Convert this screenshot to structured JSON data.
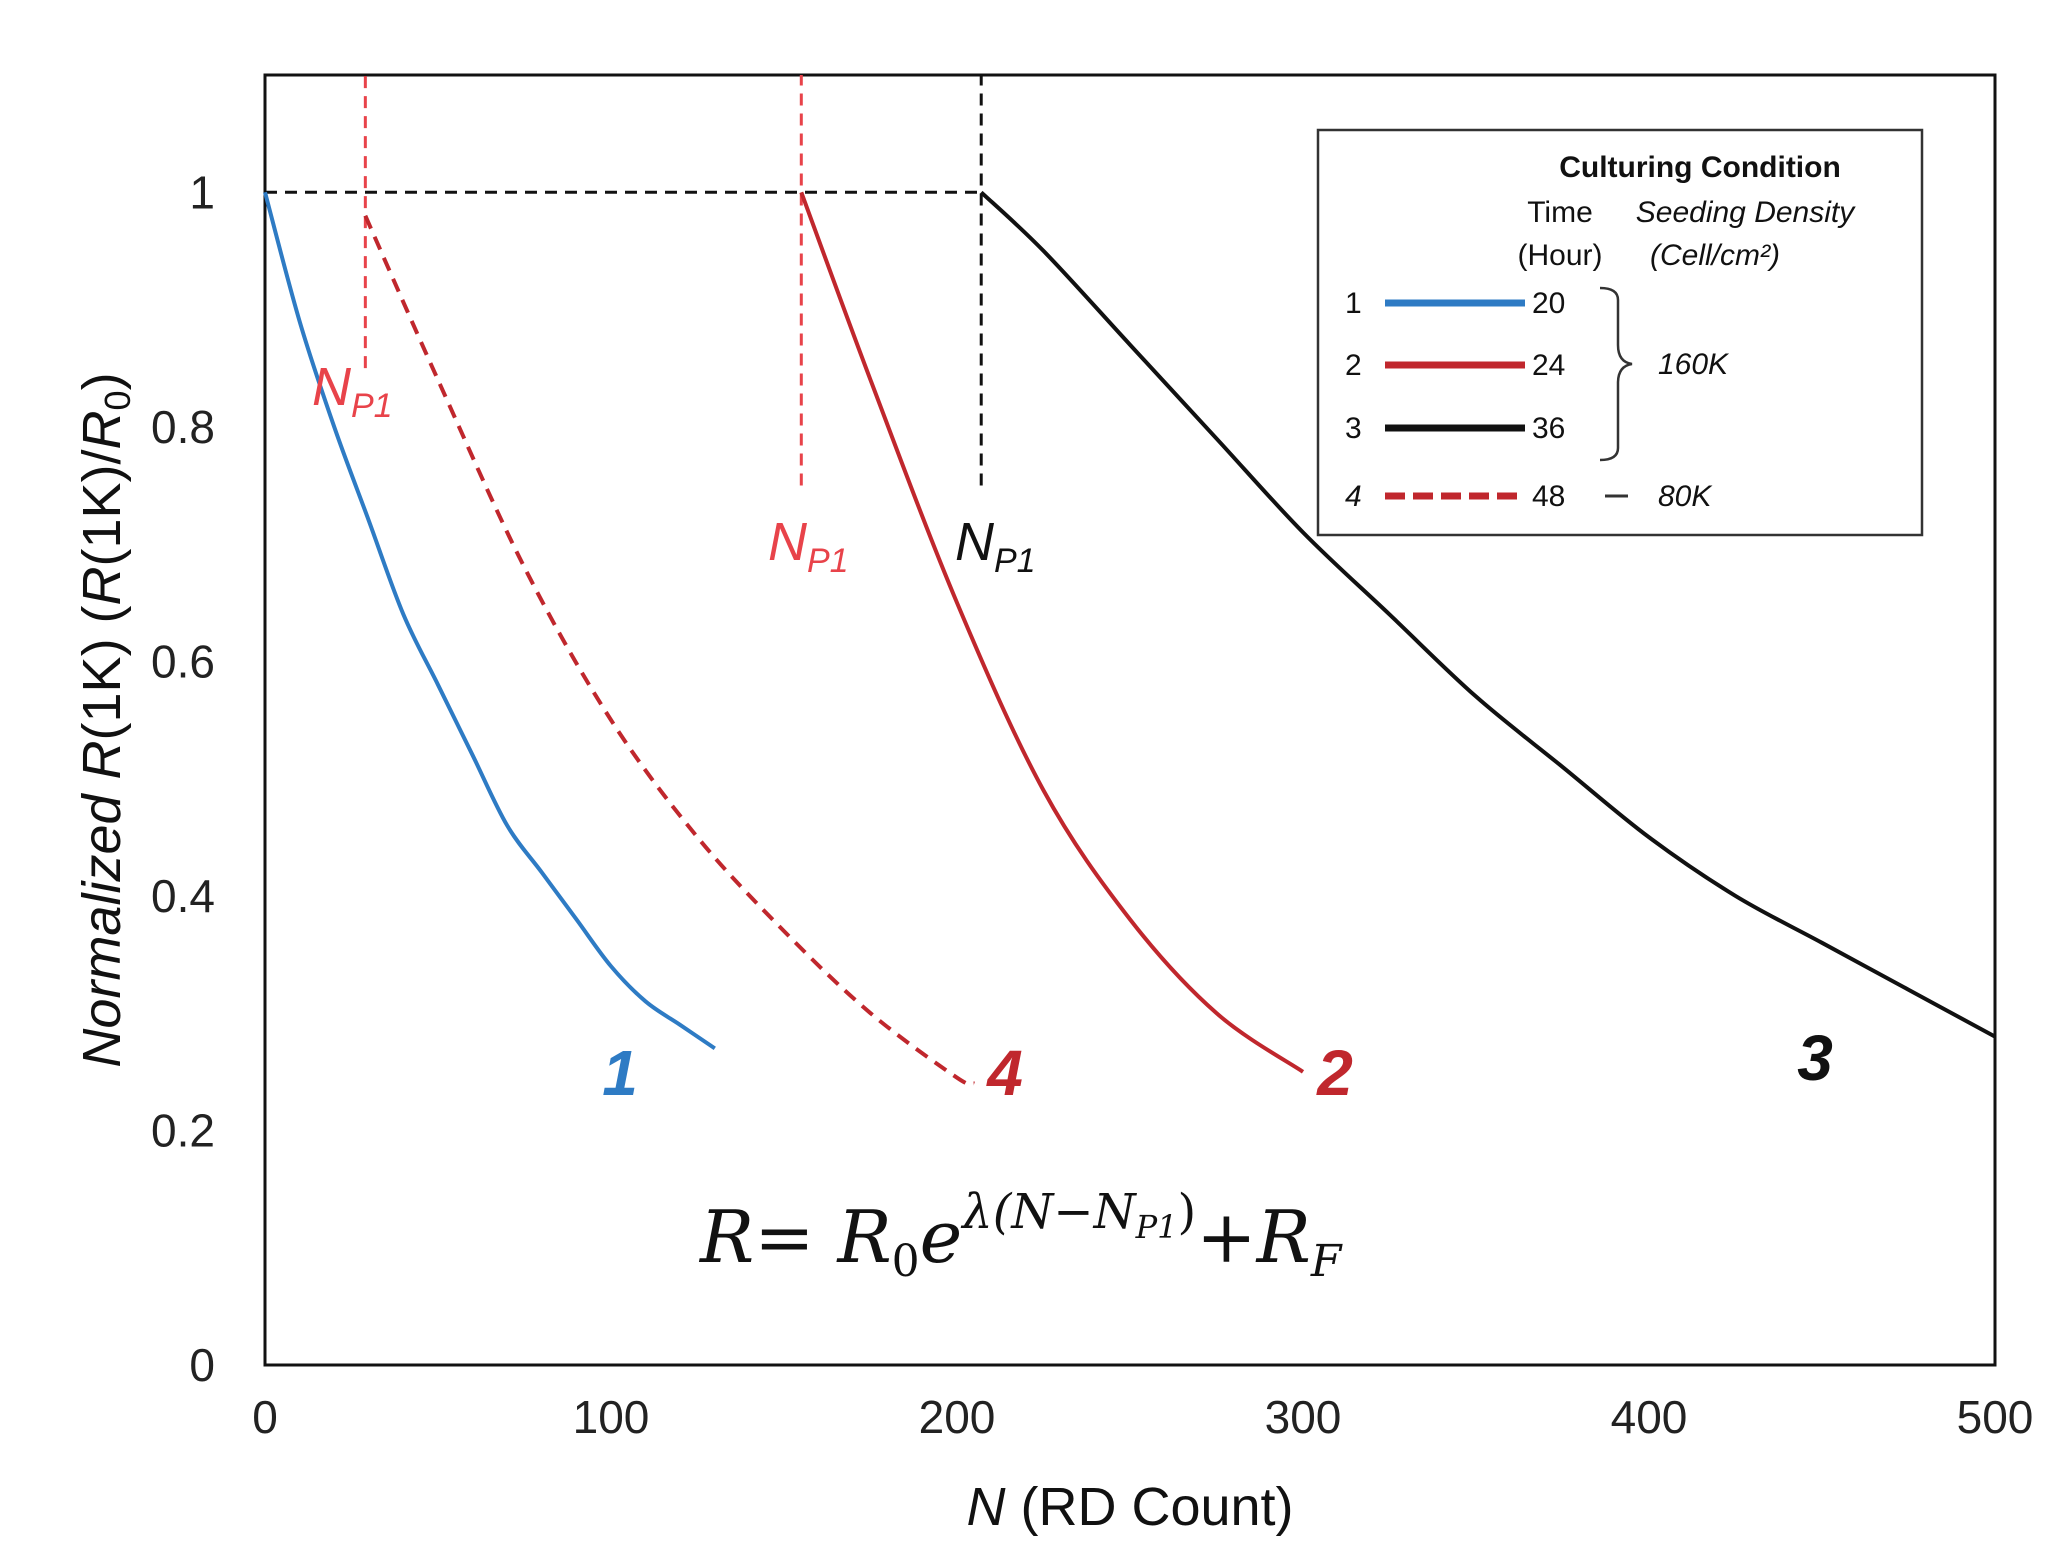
{
  "chart_data": {
    "type": "line",
    "title": "",
    "xlabel_var": "N",
    "xlabel_rest": " (RD Count)",
    "ylabel_parts": [
      "Normalized ",
      "R",
      "(1K)  (",
      "R",
      "(1K)/",
      "R",
      "0",
      ")"
    ],
    "xlim": [
      0,
      500
    ],
    "ylim": [
      0,
      1.1
    ],
    "xticks": [
      0,
      100,
      200,
      300,
      400,
      500
    ],
    "xtick_labels": [
      "0",
      "100",
      "200",
      "300",
      "400",
      "500"
    ],
    "yticks": [
      0,
      0.2,
      0.4,
      0.6,
      0.8,
      1
    ],
    "ytick_labels": [
      "0",
      "0.2",
      "0.4",
      "0.6",
      "0.8",
      "1"
    ],
    "series": [
      {
        "id": "1",
        "label": "1",
        "color": "#2e7bc4",
        "dashed": false,
        "np1": 0,
        "x": [
          0,
          10,
          20,
          30,
          40,
          50,
          60,
          70,
          80,
          90,
          100,
          110,
          120,
          130
        ],
        "y": [
          1.0,
          0.89,
          0.8,
          0.72,
          0.64,
          0.58,
          0.52,
          0.46,
          0.42,
          0.38,
          0.34,
          0.31,
          0.29,
          0.27
        ]
      },
      {
        "id": "4",
        "label": "4",
        "color": "#c0272d",
        "dashed": true,
        "np1": 29,
        "x": [
          29,
          50,
          75,
          100,
          125,
          150,
          175,
          200,
          205
        ],
        "y": [
          0.98,
          0.84,
          0.68,
          0.55,
          0.45,
          0.37,
          0.3,
          0.245,
          0.24
        ]
      },
      {
        "id": "2",
        "label": "2",
        "color": "#c0272d",
        "dashed": false,
        "np1": 155,
        "x": [
          155,
          175,
          200,
          225,
          250,
          275,
          300
        ],
        "y": [
          1.0,
          0.84,
          0.65,
          0.49,
          0.38,
          0.3,
          0.25
        ]
      },
      {
        "id": "3",
        "label": "3",
        "color": "#111111",
        "dashed": false,
        "np1": 207,
        "x": [
          207,
          225,
          250,
          275,
          300,
          325,
          350,
          375,
          400,
          425,
          450,
          475,
          500
        ],
        "y": [
          1.0,
          0.95,
          0.87,
          0.79,
          0.71,
          0.64,
          0.57,
          0.51,
          0.45,
          0.4,
          0.36,
          0.32,
          0.28
        ]
      }
    ],
    "reference_lines": {
      "horizontal_y": 1,
      "horizontal_x_end": 207,
      "verticals": [
        {
          "x": 29,
          "color": "#e8434a",
          "y_from": 0.85,
          "y_to": 1.1
        },
        {
          "x": 155,
          "color": "#e8434a",
          "y_from": 0.75,
          "y_to": 1.1
        },
        {
          "x": 207,
          "color": "#111111",
          "y_from": 0.75,
          "y_to": 1.1
        }
      ]
    },
    "np1_labels": [
      {
        "main": "N",
        "sub": "P1",
        "color": "#e8434a"
      },
      {
        "main": "N",
        "sub": "P1",
        "color": "#e8434a"
      },
      {
        "main": "N",
        "sub": "P1",
        "color": "#111111"
      }
    ],
    "equation": {
      "lhs": "R",
      "eq": "= ",
      "r0": "R",
      "r0_sub": "0",
      "e": "e",
      "exp": "λ(N−N",
      "exp_sub": "P1",
      "exp_end": ")",
      "plus": "+",
      "rf": "R",
      "rf_sub": "F"
    },
    "legend": {
      "title": "Culturing Condition",
      "col_time_1": "Time",
      "col_time_2": "(Hour)",
      "col_seed_1": "Seeding Density",
      "col_seed_2": "(Cell/cm²)",
      "entries": [
        {
          "num": "1",
          "time": "20",
          "color": "#2e7bc4",
          "dashed": false
        },
        {
          "num": "2",
          "time": "24",
          "color": "#c0272d",
          "dashed": false
        },
        {
          "num": "3",
          "time": "36",
          "color": "#111111",
          "dashed": false
        },
        {
          "num": "4",
          "time": "48",
          "color": "#c0272d",
          "dashed": true
        }
      ],
      "density_group": "160K",
      "density_single": "80K"
    }
  }
}
